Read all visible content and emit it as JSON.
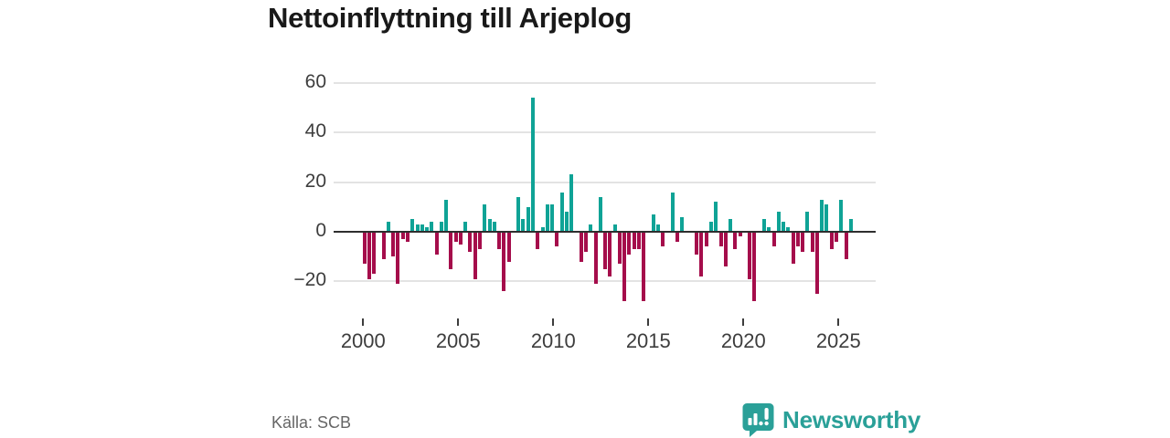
{
  "header": {
    "title": "Nettoinflyttning till Arjeplog"
  },
  "footer": {
    "source": "Källa: SCB",
    "brand": "Newsworthy"
  },
  "colors": {
    "bar_positive": "#0fa396",
    "bar_negative": "#a50d4b",
    "brand_teal": "#2aa098",
    "axis_text": "#3d3d3d",
    "gridline": "#e3e3e3",
    "zero_line": "#2e2e2e"
  },
  "chart_data": {
    "type": "bar",
    "title": "Nettoinflyttning till Arjeplog",
    "xlabel": "",
    "ylabel": "",
    "frequency": "quarterly",
    "start": "2000-Q1",
    "end": "2025-Q2",
    "x_tick_labels": [
      "2000",
      "2005",
      "2010",
      "2015",
      "2020",
      "2025"
    ],
    "y_ticks": [
      60,
      40,
      20,
      0,
      -20
    ],
    "y_tick_labels": [
      "60",
      "40",
      "20",
      "0",
      "−20"
    ],
    "ylim": [
      -30,
      62
    ],
    "grid": "horizontal",
    "legend": "none",
    "series": [
      {
        "name": "Nettoinflyttning",
        "values": [
          -13,
          -19,
          -17,
          0,
          -11,
          4,
          -10,
          -21,
          -3,
          -4,
          5,
          3,
          3,
          2,
          4,
          -9,
          4,
          13,
          -15,
          -4,
          -5,
          4,
          -8,
          -19,
          -7,
          11,
          5,
          4,
          -7,
          -24,
          -12,
          0,
          14,
          5,
          10,
          54,
          -7,
          2,
          11,
          11,
          -6,
          16,
          8,
          23,
          0,
          -12,
          -8,
          3,
          -21,
          14,
          -15,
          -18,
          3,
          -13,
          -28,
          -9,
          -7,
          -7,
          -28,
          0,
          7,
          3,
          -6,
          0,
          16,
          -4,
          6,
          0,
          0,
          -9,
          -18,
          -6,
          4,
          12,
          -6,
          -14,
          5,
          -7,
          -2,
          0,
          -19,
          -28,
          0,
          5,
          2,
          -6,
          8,
          4,
          2,
          -13,
          -6,
          -8,
          8,
          -8,
          -25,
          13,
          11,
          -7,
          -4,
          13,
          -11,
          5
        ]
      }
    ]
  }
}
